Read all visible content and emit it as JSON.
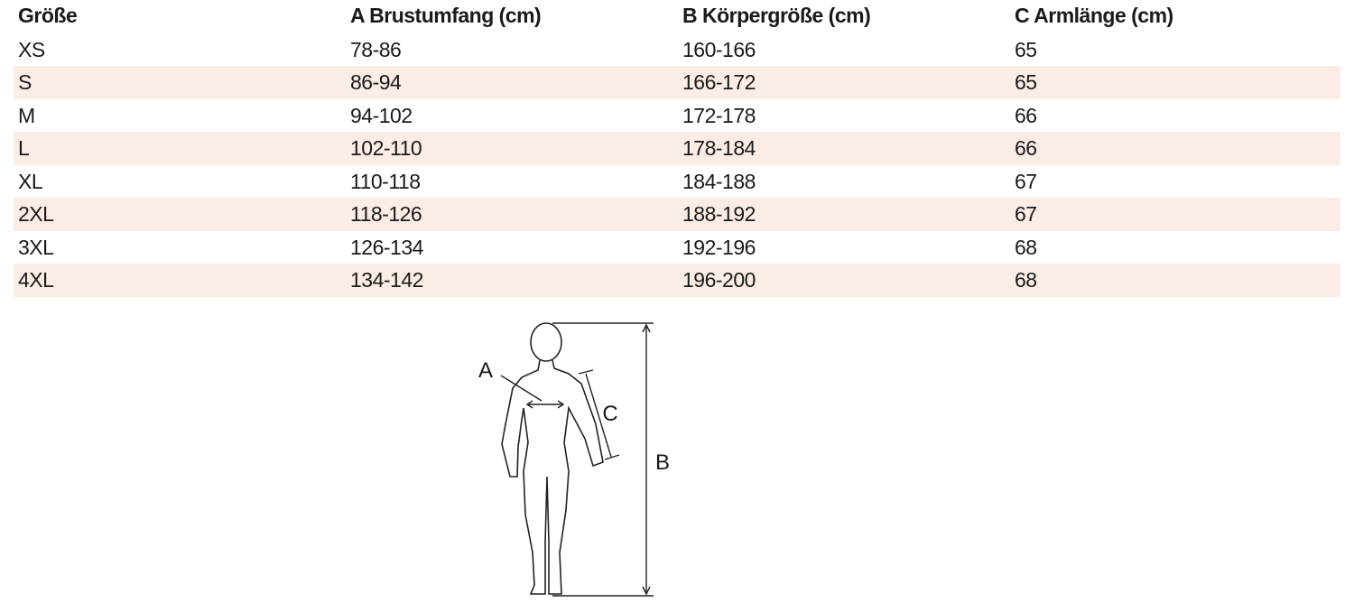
{
  "table": {
    "headers": [
      "Größe",
      "A Brustumfang (cm)",
      "B Körpergröße (cm)",
      "C Armlänge (cm)"
    ],
    "rows": [
      [
        "XS",
        "78-86",
        "160-166",
        "65"
      ],
      [
        "S",
        "86-94",
        "166-172",
        "65"
      ],
      [
        "M",
        "94-102",
        "172-178",
        "66"
      ],
      [
        "L",
        "102-110",
        "178-184",
        "66"
      ],
      [
        "XL",
        "110-118",
        "184-188",
        "67"
      ],
      [
        "2XL",
        "118-126",
        "188-192",
        "67"
      ],
      [
        "3XL",
        "126-134",
        "192-196",
        "68"
      ],
      [
        "4XL",
        "134-142",
        "196-200",
        "68"
      ]
    ]
  },
  "diagram": {
    "labels": {
      "a": "A",
      "b": "B",
      "c": "C"
    }
  }
}
